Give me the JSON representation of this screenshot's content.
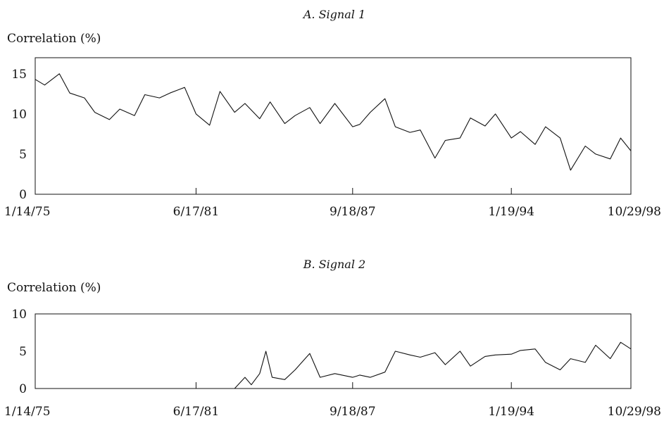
{
  "chart_data": [
    {
      "type": "line",
      "title": "A. Signal 1",
      "ylabel": "Correlation (%)",
      "xlabel": "",
      "ylim": [
        0,
        17
      ],
      "y_ticks": [
        0,
        5,
        10,
        15
      ],
      "x_range": [
        "1/14/75",
        "10/29/98"
      ],
      "x_ticks": [
        "1/14/75",
        "6/17/81",
        "9/18/87",
        "1/19/94",
        "10/29/98"
      ],
      "grid": false,
      "series": [
        {
          "x": [
            "1/14/75",
            "6/1/75",
            "1/1/76",
            "6/1/76",
            "1/1/77",
            "6/1/77",
            "1/1/78",
            "6/1/78",
            "1/1/79",
            "6/1/79",
            "1/1/80",
            "6/1/80",
            "1/1/81",
            "6/17/81",
            "1/1/82",
            "6/1/82",
            "1/1/83",
            "6/1/83",
            "1/1/84",
            "6/1/84",
            "1/1/85",
            "6/1/85",
            "1/1/86",
            "6/1/86",
            "1/1/87",
            "9/18/87",
            "1/1/88",
            "6/1/88",
            "1/1/89",
            "6/1/89",
            "1/1/90",
            "6/1/90",
            "1/1/91",
            "6/1/91",
            "1/1/92",
            "6/1/92",
            "1/1/93",
            "6/1/93",
            "1/19/94",
            "6/1/94",
            "1/1/95",
            "6/1/95",
            "1/1/96",
            "6/1/96",
            "1/1/97",
            "6/1/97",
            "1/1/98",
            "6/1/98",
            "10/29/98"
          ],
          "y": [
            14.3,
            13.6,
            15.0,
            12.6,
            12.0,
            10.2,
            9.3,
            10.6,
            9.8,
            12.4,
            12.0,
            12.6,
            13.3,
            10.0,
            8.6,
            12.8,
            10.2,
            11.3,
            9.4,
            11.5,
            8.8,
            9.8,
            10.8,
            8.8,
            11.3,
            8.4,
            8.7,
            10.2,
            11.9,
            8.4,
            7.7,
            8.0,
            4.5,
            6.7,
            7.0,
            9.5,
            8.5,
            10.0,
            7.0,
            7.8,
            6.2,
            8.4,
            7.0,
            3.0,
            6.0,
            5.0,
            4.4,
            7.0,
            5.4
          ]
        }
      ]
    },
    {
      "type": "line",
      "title": "B. Signal 2",
      "ylabel": "Correlation (%)",
      "xlabel": "",
      "ylim": [
        0,
        10
      ],
      "y_ticks": [
        0,
        5,
        10
      ],
      "x_range": [
        "1/14/75",
        "10/29/98"
      ],
      "x_ticks": [
        "1/14/75",
        "6/17/81",
        "9/18/87",
        "1/19/94",
        "10/29/98"
      ],
      "grid": false,
      "series": [
        {
          "x": [
            "1/1/83",
            "6/1/83",
            "9/1/83",
            "1/1/84",
            "4/1/84",
            "7/1/84",
            "1/1/85",
            "6/1/85",
            "1/1/86",
            "6/1/86",
            "1/1/87",
            "9/18/87",
            "1/1/88",
            "6/1/88",
            "1/1/89",
            "6/1/89",
            "1/1/90",
            "6/1/90",
            "1/1/91",
            "6/1/91",
            "1/1/92",
            "6/1/92",
            "1/1/93",
            "6/1/93",
            "1/19/94",
            "6/1/94",
            "1/1/95",
            "6/1/95",
            "1/1/96",
            "6/1/96",
            "1/1/97",
            "6/1/97",
            "1/1/98",
            "6/1/98",
            "10/29/98"
          ],
          "y": [
            0.0,
            1.5,
            0.5,
            2.0,
            5.0,
            1.5,
            1.2,
            2.5,
            4.7,
            1.5,
            2.0,
            1.5,
            1.8,
            1.5,
            2.2,
            5.0,
            4.5,
            4.2,
            4.8,
            3.2,
            5.0,
            3.0,
            4.3,
            4.5,
            4.6,
            5.1,
            5.3,
            3.5,
            2.5,
            4.0,
            3.5,
            5.8,
            4.0,
            6.2,
            5.3
          ]
        }
      ]
    }
  ]
}
